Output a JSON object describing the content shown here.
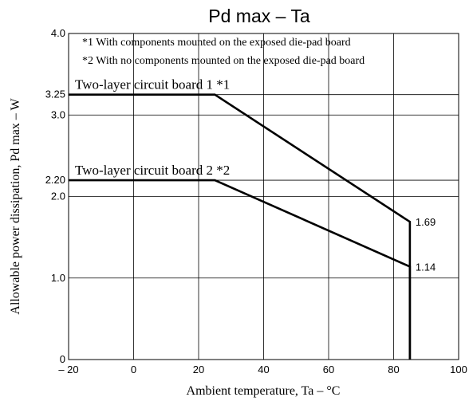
{
  "chart_data": {
    "type": "line",
    "title": "Pd max  –  Ta",
    "xlabel": "Ambient temperature, Ta  –  °C",
    "ylabel": "Allowable power dissipation, Pd max  –  W",
    "xlim": [
      -20,
      100
    ],
    "ylim": [
      0,
      4.0
    ],
    "x_ticks": [
      -20,
      0,
      20,
      40,
      60,
      80,
      100
    ],
    "x_tick_labels": [
      "– 20",
      "0",
      "20",
      "40",
      "60",
      "80",
      "100"
    ],
    "y_ticks": [
      0,
      1.0,
      2.0,
      2.2,
      3.0,
      3.25,
      4.0
    ],
    "y_tick_labels": [
      "0",
      "1.0",
      "2.0",
      "2.20",
      "3.0",
      "3.25",
      "4.0"
    ],
    "grid": true,
    "notes": [
      "*1 With components mounted on the exposed die-pad board",
      "*2 With no components mounted on the exposed die-pad board"
    ],
    "series": [
      {
        "name": "Two-layer circuit board 1 *1",
        "x": [
          -20,
          25,
          85,
          85
        ],
        "y": [
          3.25,
          3.25,
          1.69,
          0
        ],
        "end_label": "1.69"
      },
      {
        "name": "Two-layer circuit board 2 *2",
        "x": [
          -20,
          25,
          85,
          85
        ],
        "y": [
          2.2,
          2.2,
          1.14,
          0
        ],
        "end_label": "1.14"
      }
    ]
  }
}
